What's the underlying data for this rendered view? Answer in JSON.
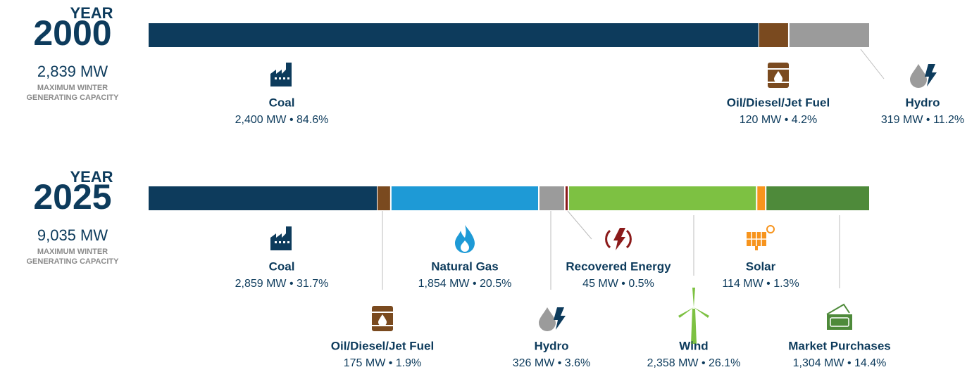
{
  "chart_data": [
    {
      "type": "stacked_bar",
      "title": "YEAR",
      "year": "2000",
      "total": "2,839 MW",
      "subtitle_lines": [
        "MAXIMUM WINTER",
        "GENERATING CAPACITY"
      ],
      "series": [
        {
          "name": "Coal",
          "color": "#0d3b5c",
          "values": [
            2400
          ],
          "value_labels": [
            "2,400 MW • 84.6%"
          ]
        },
        {
          "name": "Oil/Diesel/Jet Fuel",
          "color": "#7a4a1f",
          "values": [
            120
          ],
          "value_labels": [
            "120 MW • 4.2%"
          ]
        },
        {
          "name": "Hydro",
          "color": "#9b9b9b",
          "values": [
            319
          ],
          "value_labels": [
            "319 MW • 11.2%"
          ]
        }
      ]
    },
    {
      "type": "stacked_bar",
      "title": "YEAR",
      "year": "2025",
      "total": "9,035 MW",
      "subtitle_lines": [
        "MAXIMUM WINTER",
        "GENERATING CAPACITY"
      ],
      "series": [
        {
          "name": "Coal",
          "color": "#0d3b5c",
          "values": [
            2859
          ],
          "value_labels": [
            "2,859 MW • 31.7%"
          ]
        },
        {
          "name": "Oil/Diesel/Jet Fuel",
          "color": "#7a4a1f",
          "values": [
            175
          ],
          "value_labels": [
            "175 MW • 1.9%"
          ]
        },
        {
          "name": "Natural Gas",
          "color": "#1e9ad6",
          "values": [
            1854
          ],
          "value_labels": [
            "1,854 MW • 20.5%"
          ]
        },
        {
          "name": "Hydro",
          "color": "#9b9b9b",
          "values": [
            326
          ],
          "value_labels": [
            "326 MW • 3.6%"
          ]
        },
        {
          "name": "Recovered Energy",
          "color": "#8b1a1a",
          "values": [
            45
          ],
          "value_labels": [
            "45 MW • 0.5%"
          ]
        },
        {
          "name": "Wind",
          "color": "#7dc142",
          "values": [
            2358
          ],
          "value_labels": [
            "2,358 MW • 26.1%"
          ]
        },
        {
          "name": "Solar",
          "color": "#f7941d",
          "values": [
            114
          ],
          "value_labels": [
            "114 MW • 1.3%"
          ]
        },
        {
          "name": "Market Purchases",
          "color": "#4e8a3a",
          "values": [
            1304
          ],
          "value_labels": [
            "1,304 MW • 14.4%"
          ]
        }
      ]
    }
  ]
}
